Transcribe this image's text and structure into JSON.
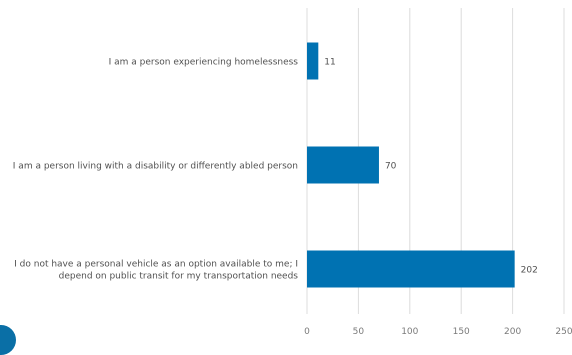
{
  "chart_data": {
    "type": "bar",
    "orientation": "horizontal",
    "categories": [
      [
        "I am a person experiencing homelessness"
      ],
      [
        "I am a person living with a disability or differently abled person"
      ],
      [
        "I do not have a personal vehicle as an option available to me; I",
        "depend on public transit for my transportation needs"
      ]
    ],
    "values": [
      11,
      70,
      202
    ],
    "data_labels": [
      "11",
      "70",
      "202"
    ],
    "xticks": [
      0,
      50,
      100,
      150,
      200,
      250
    ],
    "xtick_labels": [
      "0",
      "50",
      "100",
      "150",
      "200",
      "250"
    ],
    "xlim": [
      0,
      250
    ],
    "grid": "vertical",
    "legend": "none",
    "title": "",
    "xlabel": "",
    "ylabel": ""
  },
  "colors": {
    "bar": "#0072b2",
    "gridline": "#dcdcdc",
    "corner_mark": "#0a6fa6"
  }
}
